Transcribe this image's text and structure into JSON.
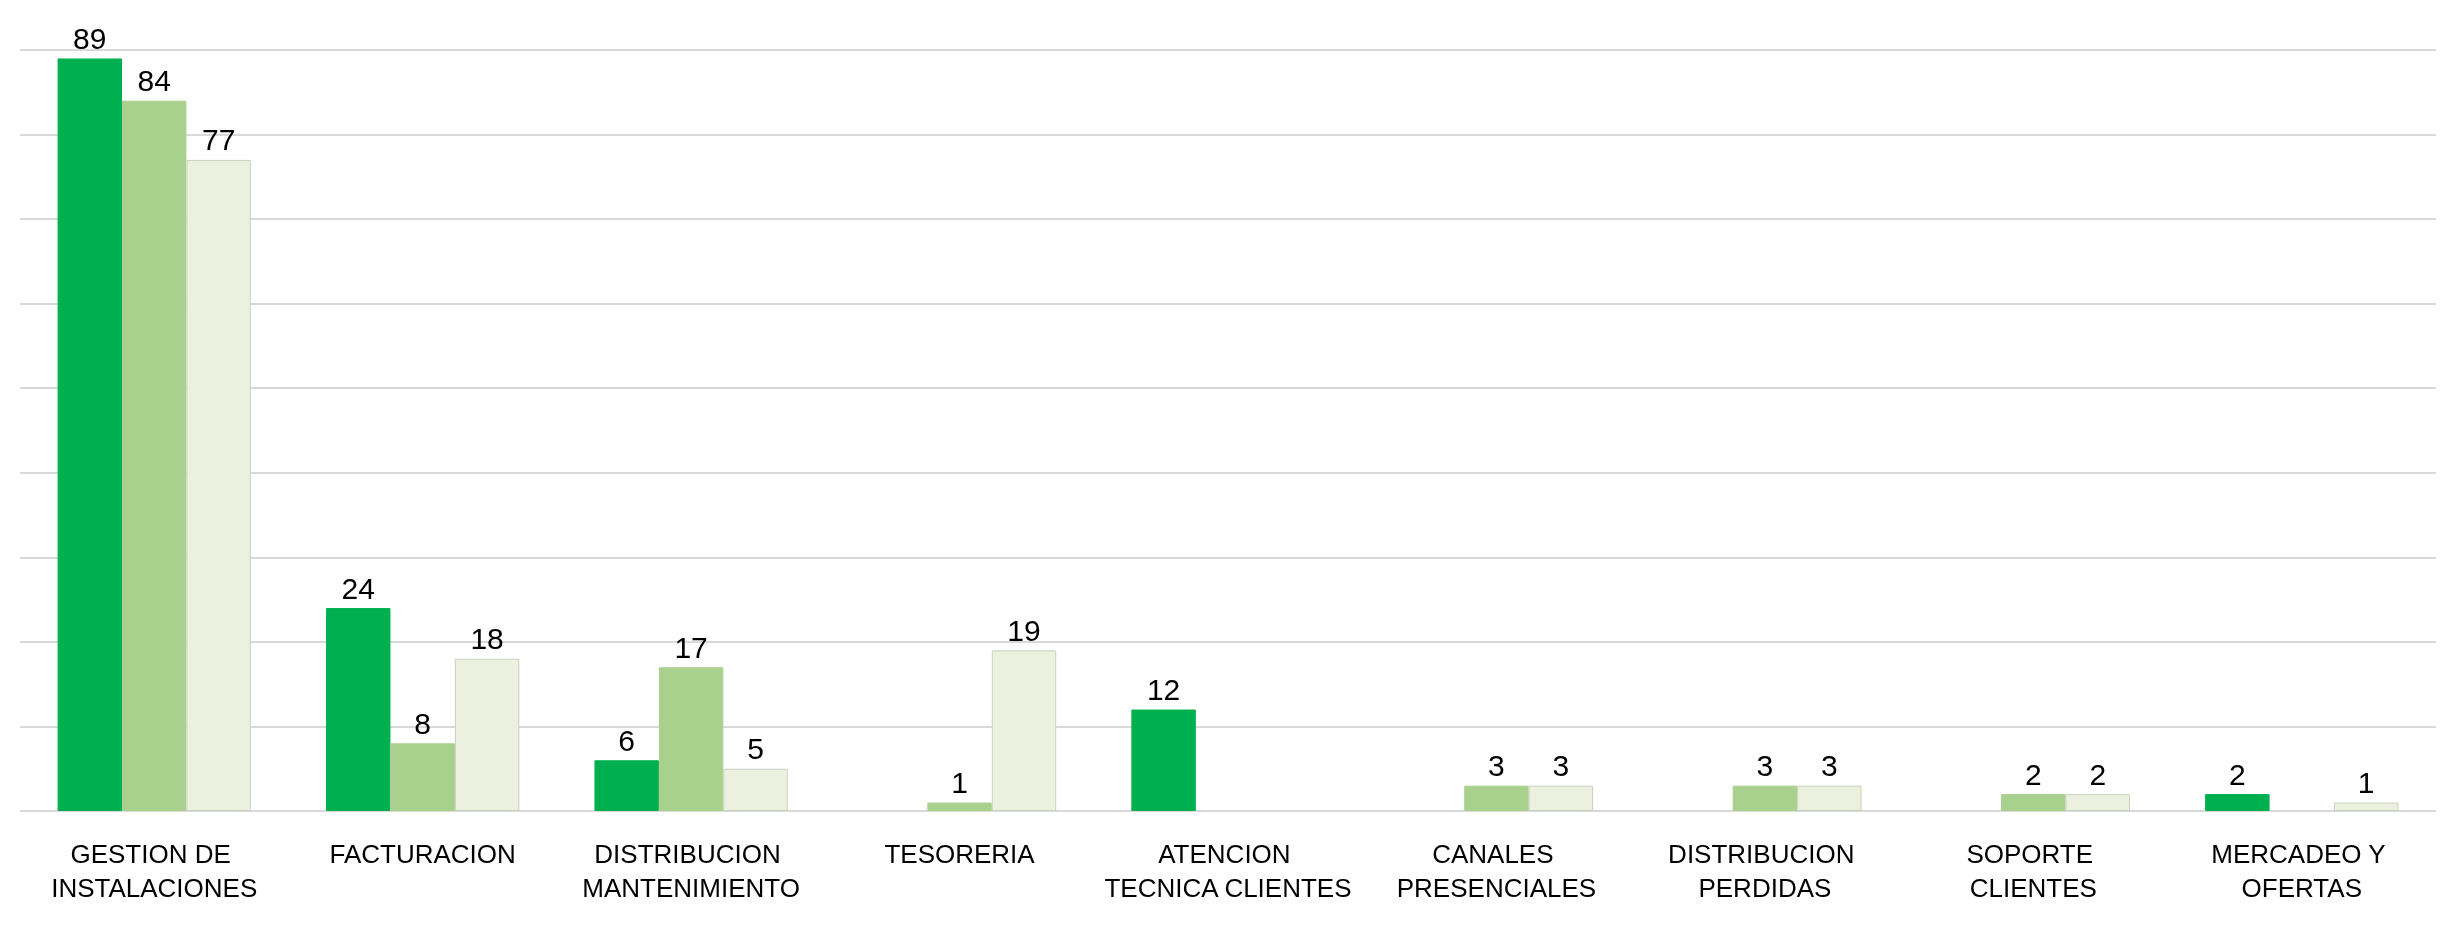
{
  "chart_data": {
    "type": "bar",
    "categories": [
      "GESTION DE INSTALACIONES",
      "FACTURACION",
      "DISTRIBUCION MANTENIMIENTO",
      "TESORERIA",
      "ATENCION TECNICA CLIENTES",
      "CANALES PRESENCIALES",
      "DISTRIBUCION PERDIDAS",
      "SOPORTE CLIENTES",
      "MERCADEO Y OFERTAS"
    ],
    "series": [
      {
        "color": "#00b050",
        "values": [
          89,
          24,
          6,
          null,
          12,
          null,
          null,
          null,
          2
        ]
      },
      {
        "color": "#a9d18e",
        "values": [
          84,
          8,
          17,
          1,
          null,
          3,
          3,
          2,
          null
        ]
      },
      {
        "color": "#ebf1de",
        "values": [
          77,
          18,
          5,
          19,
          null,
          3,
          3,
          2,
          1
        ]
      }
    ],
    "ylim": [
      0,
      90
    ],
    "yticks": [
      {
        "value": 0,
        "label": null
      },
      {
        "value": 10,
        "label": null
      },
      {
        "value": 20,
        "label": null
      },
      {
        "value": 30,
        "label": null
      },
      {
        "value": 40,
        "label": null
      },
      {
        "value": 50,
        "label": null
      },
      {
        "value": 60,
        "label": null
      },
      {
        "value": 70,
        "label": null
      },
      {
        "value": 80,
        "label": null
      },
      {
        "value": 90,
        "label": null
      }
    ],
    "tick_labels": "x",
    "grid": "y",
    "data_labels": true
  }
}
